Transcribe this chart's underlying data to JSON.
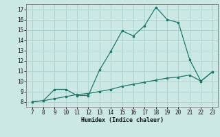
{
  "x": [
    7,
    8,
    9,
    10,
    11,
    12,
    13,
    14,
    15,
    16,
    17,
    18,
    19,
    20,
    21,
    22,
    23
  ],
  "y_curve": [
    8.0,
    8.1,
    9.2,
    9.2,
    8.6,
    8.6,
    11.1,
    12.9,
    14.9,
    14.4,
    15.4,
    17.2,
    16.0,
    15.7,
    12.1,
    10.0,
    10.9
  ],
  "y_line": [
    8.0,
    8.1,
    8.3,
    8.5,
    8.7,
    8.8,
    9.0,
    9.2,
    9.5,
    9.7,
    9.9,
    10.1,
    10.3,
    10.4,
    10.6,
    10.0,
    10.9
  ],
  "xlabel": "Humidex (Indice chaleur)",
  "xlim": [
    6.5,
    23.5
  ],
  "ylim": [
    7.5,
    17.5
  ],
  "xticks": [
    7,
    8,
    9,
    10,
    11,
    12,
    13,
    14,
    15,
    16,
    17,
    18,
    19,
    20,
    21,
    22,
    23
  ],
  "yticks": [
    8,
    9,
    10,
    11,
    12,
    13,
    14,
    15,
    16,
    17
  ],
  "line_color": "#1a7a6e",
  "bg_color": "#cce8e4",
  "grid_color": "#aed4cf"
}
